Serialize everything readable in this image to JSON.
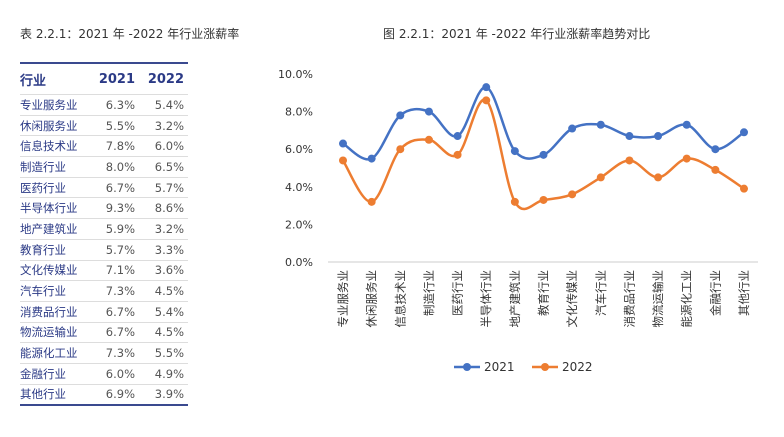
{
  "table": {
    "title": "表 2.2.1：2021 年 -2022 年行业涨薪率",
    "headers": [
      "行业",
      "2021",
      "2022"
    ],
    "rows": [
      [
        "专业服务业",
        "6.3%",
        "5.4%"
      ],
      [
        "休闲服务业",
        "5.5%",
        "3.2%"
      ],
      [
        "信息技术业",
        "7.8%",
        "6.0%"
      ],
      [
        "制造行业",
        "8.0%",
        "6.5%"
      ],
      [
        "医药行业",
        "6.7%",
        "5.7%"
      ],
      [
        "半导体行业",
        "9.3%",
        "8.6%"
      ],
      [
        "地产建筑业",
        "5.9%",
        "3.2%"
      ],
      [
        "教育行业",
        "5.7%",
        "3.3%"
      ],
      [
        "文化传媒业",
        "7.1%",
        "3.6%"
      ],
      [
        "汽车行业",
        "7.3%",
        "4.5%"
      ],
      [
        "消费品行业",
        "6.7%",
        "5.4%"
      ],
      [
        "物流运输业",
        "6.7%",
        "4.5%"
      ],
      [
        "能源化工业",
        "7.3%",
        "5.5%"
      ],
      [
        "金融行业",
        "6.0%",
        "4.9%"
      ],
      [
        "其他行业",
        "6.9%",
        "3.9%"
      ]
    ]
  },
  "chart_data": {
    "type": "line",
    "title": "图 2.2.1：2021 年 -2022 年行业涨薪率趋势对比",
    "categories": [
      "专业服务业",
      "休闲服务业",
      "信息技术业",
      "制造行业",
      "医药行业",
      "半导体行业",
      "地产建筑业",
      "教育行业",
      "文化传媒业",
      "汽车行业",
      "消费品行业",
      "物流运输业",
      "能源化工业",
      "金融行业",
      "其他行业"
    ],
    "series": [
      {
        "name": "2021",
        "color": "#4472c4",
        "values": [
          6.3,
          5.5,
          7.8,
          8.0,
          6.7,
          9.3,
          5.9,
          5.7,
          7.1,
          7.3,
          6.7,
          6.7,
          7.3,
          6.0,
          6.9
        ]
      },
      {
        "name": "2022",
        "color": "#ed7d31",
        "values": [
          5.4,
          3.2,
          6.0,
          6.5,
          5.7,
          8.6,
          3.2,
          3.3,
          3.6,
          4.5,
          5.4,
          4.5,
          5.5,
          4.9,
          3.9
        ]
      }
    ],
    "ylim": [
      0,
      10
    ],
    "yticks": [
      "0.0%",
      "2.0%",
      "4.0%",
      "6.0%",
      "8.0%",
      "10.0%"
    ],
    "legend": "bottom",
    "grid": false
  }
}
